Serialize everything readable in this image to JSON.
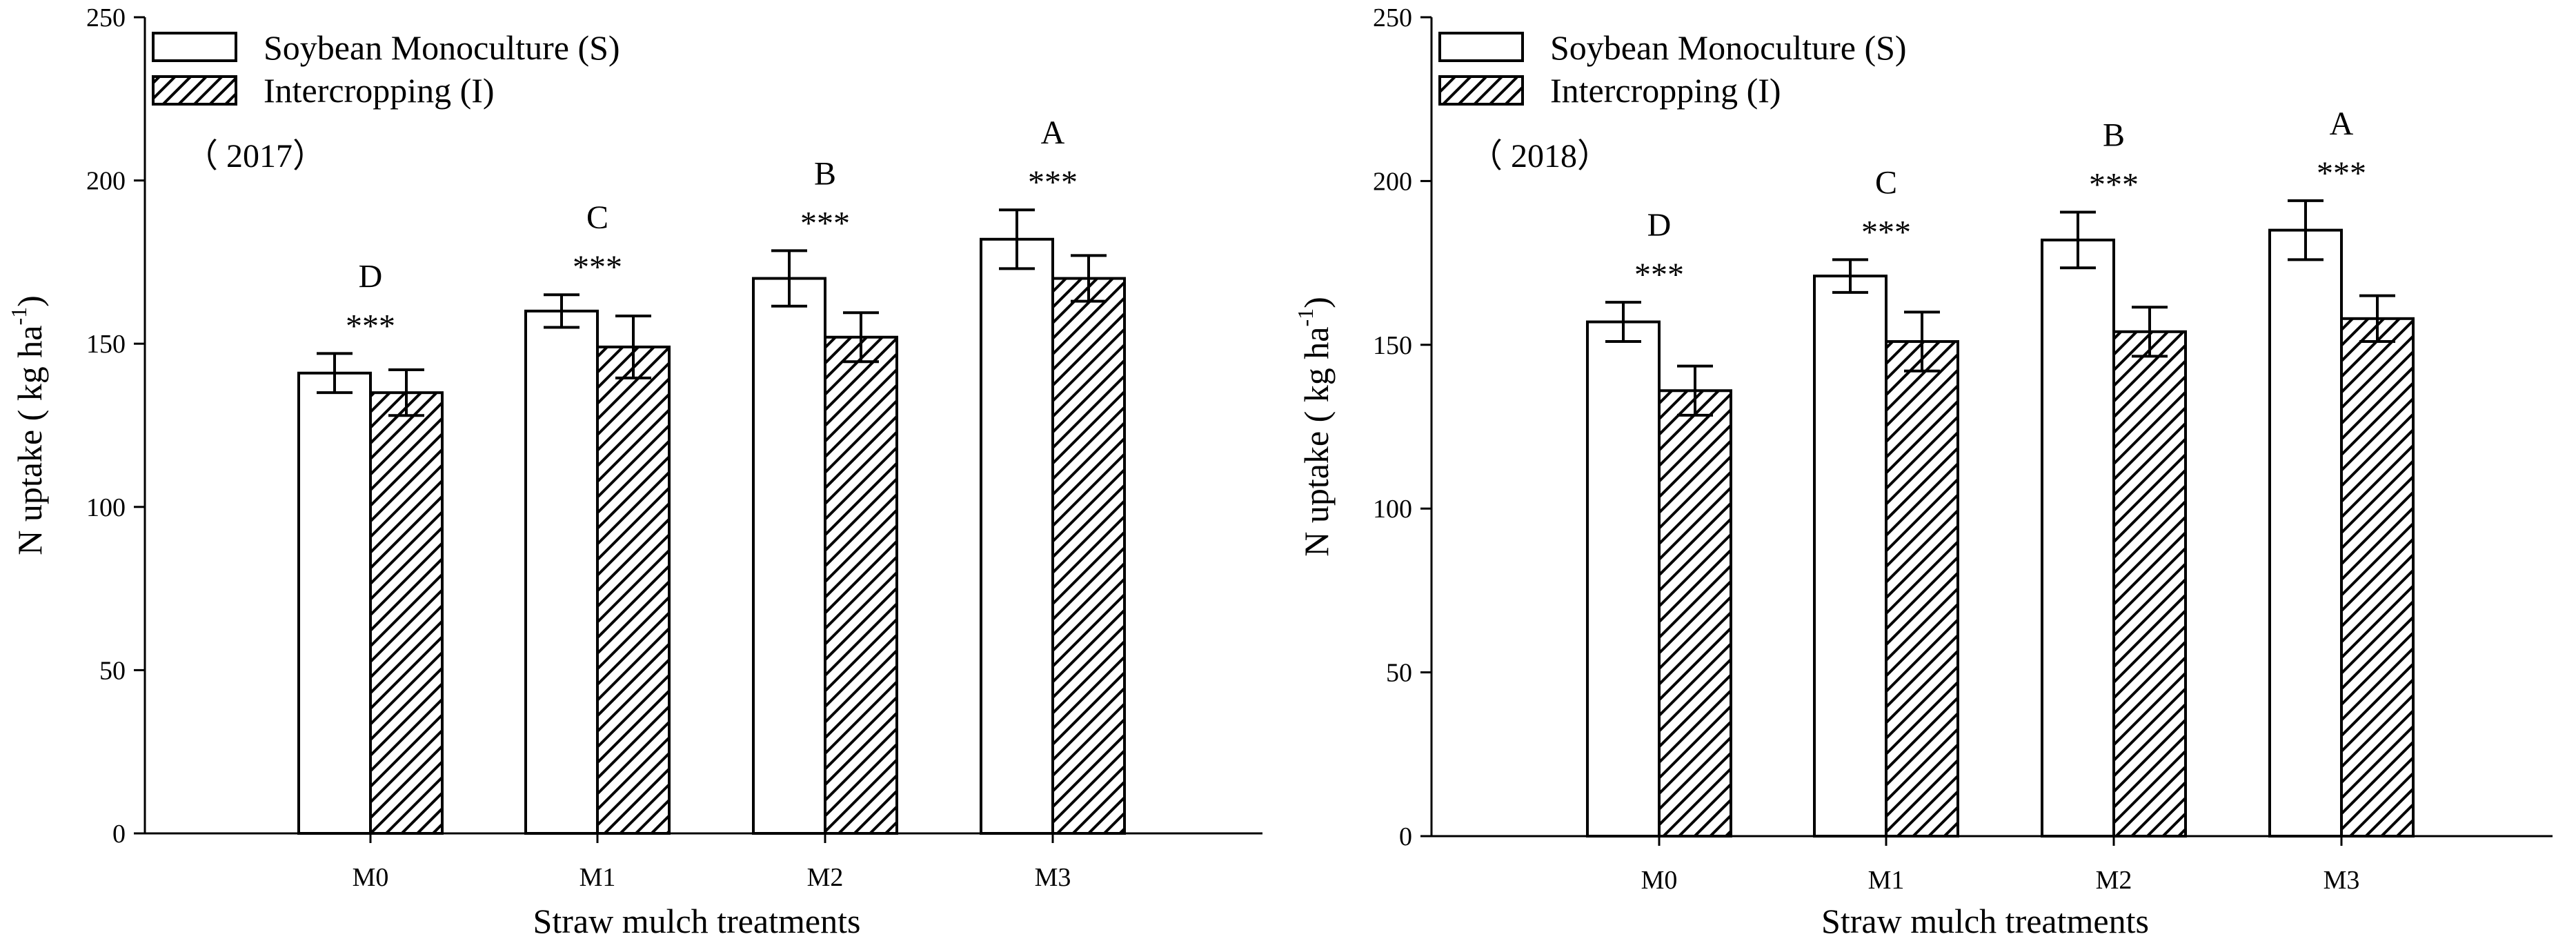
{
  "legend": {
    "S": "Soybean Monoculture (S)",
    "I": "Intercropping (I)"
  },
  "colors": {
    "S_fill": "#ffffff",
    "I_fill": "hatch",
    "stroke": "#000000"
  },
  "chart_data": [
    {
      "type": "bar",
      "title": "",
      "panel_label": "（ 2017）",
      "xlabel": "Straw mulch treatments",
      "ylabel": "N uptake ( kg ha",
      "ylabel_superscript": "-1",
      "ylabel_close": ")",
      "ylim": [
        0,
        250
      ],
      "yticks": [
        0,
        50,
        100,
        150,
        200,
        250
      ],
      "categories": [
        "M0",
        "M1",
        "M2",
        "M3"
      ],
      "series": [
        {
          "name": "Soybean Monoculture (S)",
          "values": [
            141,
            160,
            170,
            182
          ],
          "errors": [
            6,
            5,
            8.5,
            9
          ]
        },
        {
          "name": "Intercropping (I)",
          "values": [
            135,
            149,
            152,
            170
          ],
          "errors": [
            7,
            9.5,
            7.5,
            7
          ]
        }
      ],
      "annotations": [
        {
          "category": "M0",
          "letter": "D",
          "stars": "***"
        },
        {
          "category": "M1",
          "letter": "C",
          "stars": "***"
        },
        {
          "category": "M2",
          "letter": "B",
          "stars": "***"
        },
        {
          "category": "M3",
          "letter": "A",
          "stars": "***"
        }
      ]
    },
    {
      "type": "bar",
      "title": "",
      "panel_label": "（ 2018）",
      "xlabel": "Straw mulch treatments",
      "ylabel": "N uptake ( kg ha",
      "ylabel_superscript": "-1",
      "ylabel_close": ")",
      "ylim": [
        0,
        250
      ],
      "yticks": [
        0,
        50,
        100,
        150,
        200,
        250
      ],
      "categories": [
        "M0",
        "M1",
        "M2",
        "M3"
      ],
      "series": [
        {
          "name": "Soybean Monoculture (S)",
          "values": [
            157,
            171,
            182,
            185
          ],
          "errors": [
            6,
            5,
            8.5,
            9
          ]
        },
        {
          "name": "Intercropping (I)",
          "values": [
            136,
            151,
            154,
            158
          ],
          "errors": [
            7.5,
            9,
            7.5,
            7
          ]
        }
      ],
      "annotations": [
        {
          "category": "M0",
          "letter": "D",
          "stars": "***"
        },
        {
          "category": "M1",
          "letter": "C",
          "stars": "***"
        },
        {
          "category": "M2",
          "letter": "B",
          "stars": "***"
        },
        {
          "category": "M3",
          "letter": "A",
          "stars": "***"
        }
      ]
    }
  ]
}
